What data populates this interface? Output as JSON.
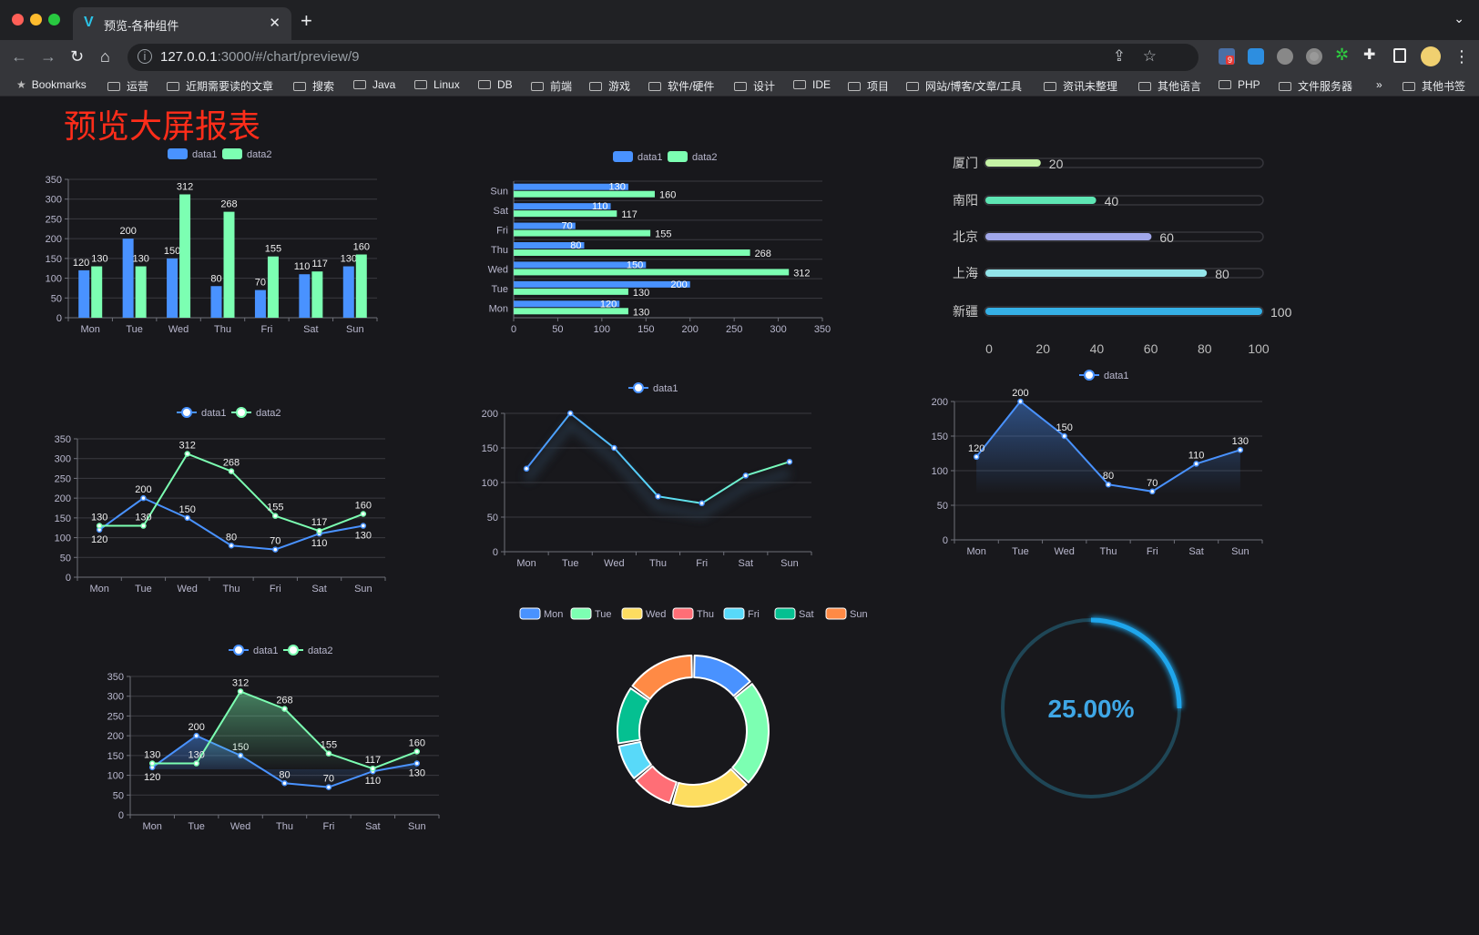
{
  "browser": {
    "tab_title": "预览-各种组件",
    "tab_icon": "v-logo-icon",
    "url_host": "127.0.0.1",
    "url_rest": ":3000/#/chart/preview/9",
    "extension_badge": "9",
    "bookmarks": [
      "Bookmarks",
      "运营",
      "近期需要读的文章",
      "搜索",
      "Java",
      "Linux",
      "DB",
      "前端",
      "游戏",
      "软件/硬件",
      "设计",
      "IDE",
      "项目",
      "网站/博客/文章/工具",
      "资讯未整理",
      "其他语言",
      "PHP",
      "文件服务器"
    ],
    "more": "»",
    "other_bookmarks": "其他书签"
  },
  "page": {
    "title": "预览大屏报表",
    "title_color": "#ff2d1a",
    "background": "#18181c"
  },
  "colors": {
    "data1": "#4992ff",
    "data2": "#7cffb2",
    "palette": [
      "#4992ff",
      "#7cffb2",
      "#fddd60",
      "#ff6e76",
      "#58d9f9",
      "#05c091",
      "#ff8a45"
    ]
  },
  "chart_data": [
    {
      "id": "bar",
      "type": "bar",
      "categories": [
        "Mon",
        "Tue",
        "Wed",
        "Thu",
        "Fri",
        "Sat",
        "Sun"
      ],
      "ylim": [
        0,
        350
      ],
      "yticks": [
        0,
        50,
        100,
        150,
        200,
        250,
        300,
        350
      ],
      "grid": true,
      "legend": "top",
      "series": [
        {
          "name": "data1",
          "values": [
            120,
            200,
            150,
            80,
            70,
            110,
            130
          ]
        },
        {
          "name": "data2",
          "values": [
            130,
            130,
            312,
            268,
            155,
            117,
            160
          ]
        }
      ]
    },
    {
      "id": "hbar",
      "type": "bar",
      "orientation": "horizontal",
      "categories": [
        "Mon",
        "Tue",
        "Wed",
        "Thu",
        "Fri",
        "Sat",
        "Sun"
      ],
      "xlim": [
        0,
        350
      ],
      "xticks": [
        0,
        50,
        100,
        150,
        200,
        250,
        300,
        350
      ],
      "grid": true,
      "legend": "top",
      "series": [
        {
          "name": "data1",
          "values": [
            120,
            200,
            150,
            80,
            70,
            110,
            130
          ]
        },
        {
          "name": "data2",
          "values": [
            130,
            130,
            312,
            268,
            155,
            117,
            160
          ]
        }
      ]
    },
    {
      "id": "progress",
      "type": "bar",
      "orientation": "horizontal",
      "categories": [
        "厦门",
        "南阳",
        "北京",
        "上海",
        "新疆"
      ],
      "values": [
        20,
        40,
        60,
        80,
        100
      ],
      "xlim": [
        0,
        100
      ],
      "xticks": [
        0,
        20,
        40,
        60,
        80,
        100
      ],
      "colors": [
        "#c6f3a6",
        "#5ee6b4",
        "#a1a7ea",
        "#93e5ea",
        "#35b0e6"
      ]
    },
    {
      "id": "line2",
      "type": "line",
      "categories": [
        "Mon",
        "Tue",
        "Wed",
        "Thu",
        "Fri",
        "Sat",
        "Sun"
      ],
      "ylim": [
        0,
        350
      ],
      "yticks": [
        0,
        50,
        100,
        150,
        200,
        250,
        300,
        350
      ],
      "grid": true,
      "legend": "top",
      "series": [
        {
          "name": "data1",
          "values": [
            120,
            200,
            150,
            80,
            70,
            110,
            130
          ]
        },
        {
          "name": "data2",
          "values": [
            130,
            130,
            312,
            268,
            155,
            117,
            160
          ]
        }
      ]
    },
    {
      "id": "line1",
      "type": "line",
      "categories": [
        "Mon",
        "Tue",
        "Wed",
        "Thu",
        "Fri",
        "Sat",
        "Sun"
      ],
      "ylim": [
        0,
        200
      ],
      "yticks": [
        0,
        50,
        100,
        150,
        200
      ],
      "grid": true,
      "legend": "top",
      "gradient_line": true,
      "shadow": true,
      "series": [
        {
          "name": "data1",
          "values": [
            120,
            200,
            150,
            80,
            70,
            110,
            130
          ]
        }
      ]
    },
    {
      "id": "area1",
      "type": "area",
      "categories": [
        "Mon",
        "Tue",
        "Wed",
        "Thu",
        "Fri",
        "Sat",
        "Sun"
      ],
      "ylim": [
        0,
        200
      ],
      "yticks": [
        0,
        50,
        100,
        150,
        200
      ],
      "grid": true,
      "legend": "top",
      "labels": true,
      "series": [
        {
          "name": "data1",
          "values": [
            120,
            200,
            150,
            80,
            70,
            110,
            130
          ]
        }
      ]
    },
    {
      "id": "area2",
      "type": "area",
      "categories": [
        "Mon",
        "Tue",
        "Wed",
        "Thu",
        "Fri",
        "Sat",
        "Sun"
      ],
      "ylim": [
        0,
        350
      ],
      "yticks": [
        0,
        50,
        100,
        150,
        200,
        250,
        300,
        350
      ],
      "grid": true,
      "legend": "top",
      "labels": true,
      "series": [
        {
          "name": "data1",
          "values": [
            120,
            200,
            150,
            80,
            70,
            110,
            130
          ]
        },
        {
          "name": "data2",
          "values": [
            130,
            130,
            312,
            268,
            155,
            117,
            160
          ]
        }
      ]
    },
    {
      "id": "pie",
      "type": "pie",
      "donut": true,
      "legend": "top",
      "categories": [
        "Mon",
        "Tue",
        "Wed",
        "Thu",
        "Fri",
        "Sat",
        "Sun"
      ],
      "values": [
        120,
        200,
        150,
        80,
        70,
        110,
        130
      ]
    },
    {
      "id": "gauge",
      "type": "gauge",
      "value": 25,
      "label": "25.00%",
      "color": "#1fa6ec",
      "track_color": "#1f4656"
    }
  ]
}
